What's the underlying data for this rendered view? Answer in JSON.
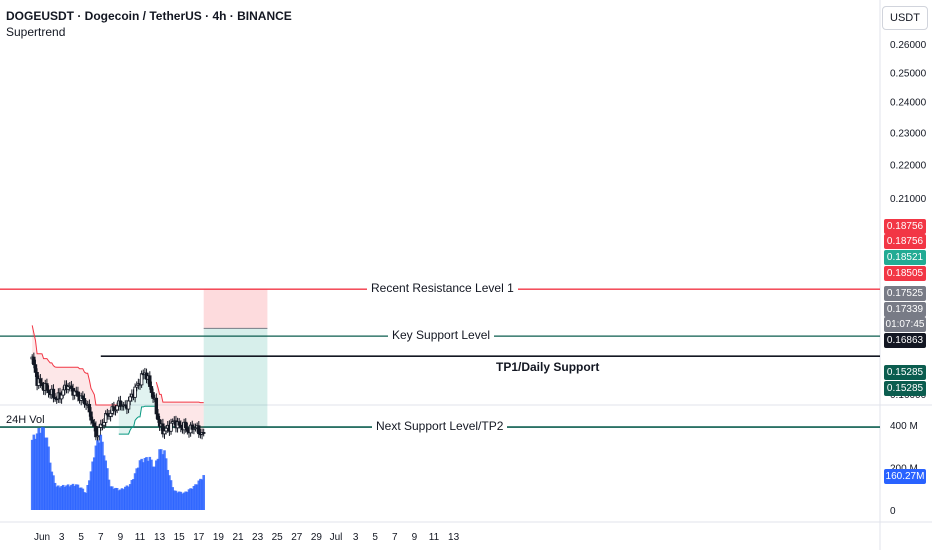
{
  "header": {
    "symbol": "DOGEUSDT · Dogecoin / TetherUS · 4h · BINANCE",
    "indicator": "Supertrend"
  },
  "currency_button": "USDT",
  "volume_label": "24H Vol",
  "annotations": {
    "resistance": "Recent Resistance Level 1",
    "key_support": "Key Support Level",
    "tp1": "TP1/Daily Support",
    "tp2": "Next Support Level/TP2"
  },
  "price_tags": [
    {
      "text": "0.18756",
      "price": 0.18756,
      "color": "#f23645"
    },
    {
      "text": "0.18756",
      "price": 0.18756,
      "color": "#f23645"
    },
    {
      "text": "0.18521",
      "price": 0.18521,
      "color": "#22ab94"
    },
    {
      "text": "0.18505",
      "price": 0.18505,
      "color": "#f23645"
    },
    {
      "text": "0.17525",
      "price": 0.17525,
      "color": "#787b86"
    },
    {
      "text": "0.17339",
      "price": 0.17339,
      "color": "#787b86"
    },
    {
      "text": "01:07:45",
      "price": 0.17339,
      "color": "#787b86"
    },
    {
      "text": "0.16863",
      "price": 0.16863,
      "color": "#131722"
    },
    {
      "text": "0.15285",
      "price": 0.15285,
      "color": "#0b5d4f"
    },
    {
      "text": "0.15285",
      "price": 0.15285,
      "color": "#0b5d4f"
    }
  ],
  "volume_tag": {
    "text": "160.27M",
    "value": 160.27,
    "color": "#2962ff"
  },
  "chart_data": {
    "type": "candlestick",
    "price_axis": {
      "ticks": [
        "0.26000",
        "0.25000",
        "0.24000",
        "0.23000",
        "0.22000",
        "0.21000",
        "0.16000"
      ],
      "tick_values": [
        0.26,
        0.25,
        0.24,
        0.23,
        0.22,
        0.21,
        0.16
      ],
      "scale": "log"
    },
    "volume_axis": {
      "ticks": [
        "400 M",
        "200 M",
        "0"
      ],
      "tick_values": [
        400,
        200,
        0
      ]
    },
    "time_axis": {
      "labels": [
        "Jun",
        "3",
        "5",
        "7",
        "9",
        "11",
        "13",
        "15",
        "17",
        "19",
        "21",
        "23",
        "25",
        "27",
        "29",
        "Jul",
        "3",
        "5",
        "7",
        "9",
        "11",
        "13"
      ],
      "dates": [
        "2024-06-01",
        "2024-06-03",
        "2024-06-05",
        "2024-06-07",
        "2024-06-09",
        "2024-06-11",
        "2024-06-13",
        "2024-06-15",
        "2024-06-17",
        "2024-06-19",
        "2024-06-21",
        "2024-06-23",
        "2024-06-25",
        "2024-06-27",
        "2024-06-29",
        "2024-07-01",
        "2024-07-03",
        "2024-07-05",
        "2024-07-07",
        "2024-07-09",
        "2024-07-11",
        "2024-07-13"
      ]
    },
    "close_path": [
      {
        "t": "2024-05-31T00:00",
        "p": 0.168
      },
      {
        "t": "2024-05-31T12:00",
        "p": 0.163
      },
      {
        "t": "2024-06-01T00:00",
        "p": 0.162
      },
      {
        "t": "2024-06-01T12:00",
        "p": 0.161
      },
      {
        "t": "2024-06-02T00:00",
        "p": 0.16
      },
      {
        "t": "2024-06-02T12:00",
        "p": 0.159
      },
      {
        "t": "2024-06-03T00:00",
        "p": 0.16
      },
      {
        "t": "2024-06-03T12:00",
        "p": 0.162
      },
      {
        "t": "2024-06-04T00:00",
        "p": 0.161
      },
      {
        "t": "2024-06-04T12:00",
        "p": 0.16
      },
      {
        "t": "2024-06-05T00:00",
        "p": 0.159
      },
      {
        "t": "2024-06-05T12:00",
        "p": 0.158
      },
      {
        "t": "2024-06-06T00:00",
        "p": 0.155
      },
      {
        "t": "2024-06-06T12:00",
        "p": 0.151
      },
      {
        "t": "2024-06-07T00:00",
        "p": 0.153
      },
      {
        "t": "2024-06-07T12:00",
        "p": 0.155
      },
      {
        "t": "2024-06-08T00:00",
        "p": 0.156
      },
      {
        "t": "2024-06-08T12:00",
        "p": 0.157
      },
      {
        "t": "2024-06-09T00:00",
        "p": 0.158
      },
      {
        "t": "2024-06-09T12:00",
        "p": 0.157
      },
      {
        "t": "2024-06-10T00:00",
        "p": 0.159
      },
      {
        "t": "2024-06-10T12:00",
        "p": 0.161
      },
      {
        "t": "2024-06-11T00:00",
        "p": 0.163
      },
      {
        "t": "2024-06-11T12:00",
        "p": 0.165
      },
      {
        "t": "2024-06-12T00:00",
        "p": 0.162
      },
      {
        "t": "2024-06-12T12:00",
        "p": 0.158
      },
      {
        "t": "2024-06-13T00:00",
        "p": 0.153
      },
      {
        "t": "2024-06-13T12:00",
        "p": 0.152
      },
      {
        "t": "2024-06-14T00:00",
        "p": 0.153
      },
      {
        "t": "2024-06-14T12:00",
        "p": 0.154
      },
      {
        "t": "2024-06-15T00:00",
        "p": 0.153
      },
      {
        "t": "2024-06-15T12:00",
        "p": 0.153
      },
      {
        "t": "2024-06-16T00:00",
        "p": 0.152
      },
      {
        "t": "2024-06-16T12:00",
        "p": 0.153
      },
      {
        "t": "2024-06-17T00:00",
        "p": 0.152
      },
      {
        "t": "2024-06-17T12:00",
        "p": 0.151
      }
    ],
    "volume_path": [
      {
        "t": "2024-05-31T00:00",
        "v": 330
      },
      {
        "t": "2024-06-01T00:00",
        "v": 390
      },
      {
        "t": "2024-06-01T12:00",
        "v": 340
      },
      {
        "t": "2024-06-02T00:00",
        "v": 180
      },
      {
        "t": "2024-06-02T12:00",
        "v": 110
      },
      {
        "t": "2024-06-03T12:00",
        "v": 115
      },
      {
        "t": "2024-06-04T12:00",
        "v": 120
      },
      {
        "t": "2024-06-05T00:00",
        "v": 105
      },
      {
        "t": "2024-06-05T12:00",
        "v": 80
      },
      {
        "t": "2024-06-06T00:00",
        "v": 180
      },
      {
        "t": "2024-06-06T12:00",
        "v": 300
      },
      {
        "t": "2024-06-07T00:00",
        "v": 350
      },
      {
        "t": "2024-06-07T12:00",
        "v": 230
      },
      {
        "t": "2024-06-08T00:00",
        "v": 110
      },
      {
        "t": "2024-06-09T00:00",
        "v": 95
      },
      {
        "t": "2024-06-10T00:00",
        "v": 120
      },
      {
        "t": "2024-06-10T12:00",
        "v": 170
      },
      {
        "t": "2024-06-11T00:00",
        "v": 230
      },
      {
        "t": "2024-06-11T12:00",
        "v": 240
      },
      {
        "t": "2024-06-12T00:00",
        "v": 245
      },
      {
        "t": "2024-06-12T12:00",
        "v": 200
      },
      {
        "t": "2024-06-13T00:00",
        "v": 280
      },
      {
        "t": "2024-06-13T12:00",
        "v": 275
      },
      {
        "t": "2024-06-14T00:00",
        "v": 160
      },
      {
        "t": "2024-06-14T12:00",
        "v": 90
      },
      {
        "t": "2024-06-15T12:00",
        "v": 80
      },
      {
        "t": "2024-06-16T12:00",
        "v": 110
      },
      {
        "t": "2024-06-17T12:00",
        "v": 160
      }
    ],
    "horizontal_levels": [
      {
        "price": 0.18505,
        "color": "#f23645",
        "label": "Recent Resistance Level 1"
      },
      {
        "price": 0.17339,
        "color": "#0b5d4f",
        "label": "Key Support Level"
      },
      {
        "price": 0.16863,
        "color": "#131722",
        "label": "TP1/Daily Support"
      },
      {
        "price": 0.15285,
        "color": "#0b5d4f",
        "label": "Next Support Level/TP2"
      }
    ],
    "position_box": {
      "entry": 0.17525,
      "stop": 0.18521,
      "target": 0.15285,
      "start": "2024-06-17T12:00",
      "end": "2024-06-24T00:00"
    },
    "supertrend": {
      "down_color": "#f23645",
      "up_color": "#089981"
    }
  }
}
